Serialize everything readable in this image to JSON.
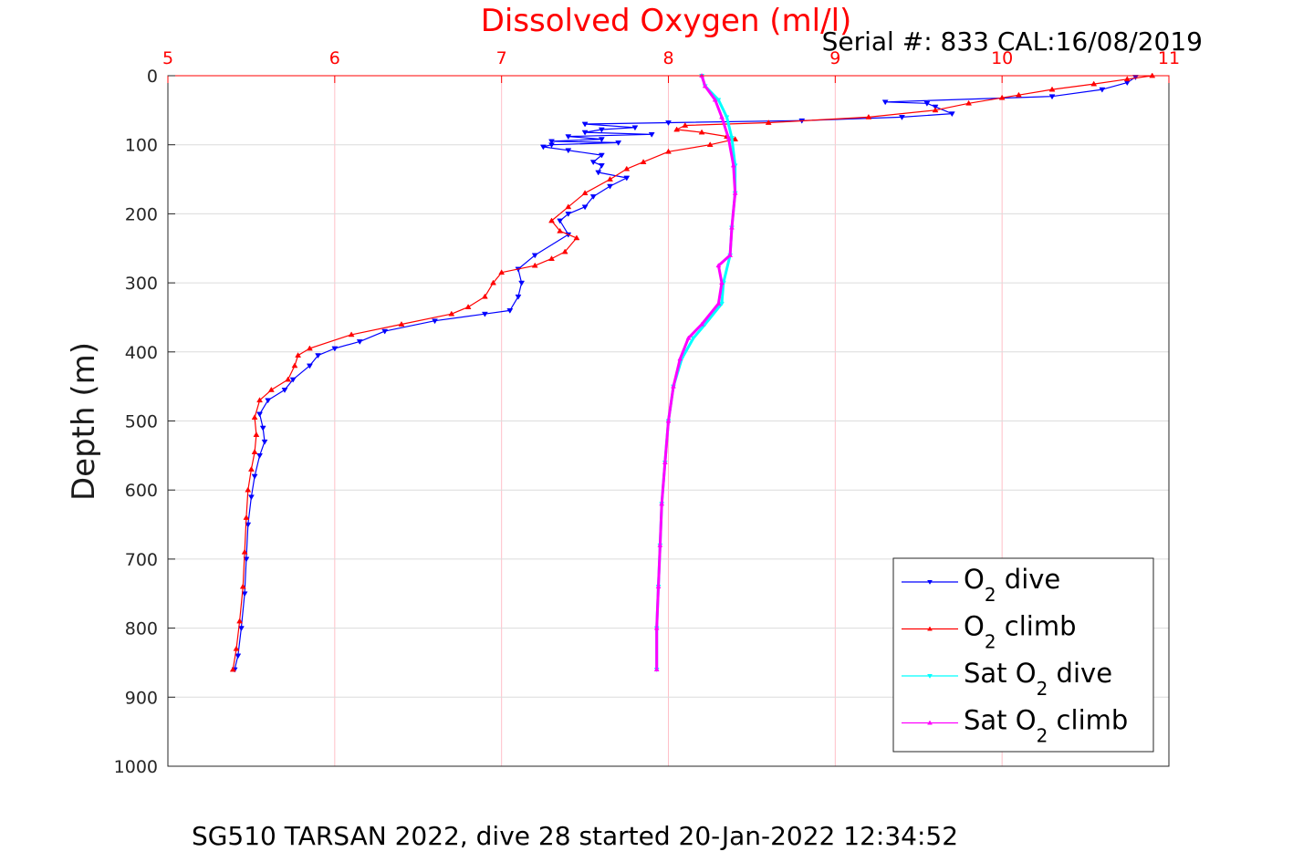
{
  "chart_data": {
    "type": "line",
    "title": "Dissolved Oxygen (ml/l)",
    "serial_text": "Serial #: 833  CAL:16/08/2019",
    "caption": "SG510 TARSAN 2022, dive 28 started 20-Jan-2022 12:34:52",
    "ylabel": "Depth (m)",
    "xlabel": "",
    "xlim": [
      5,
      11
    ],
    "ylim": [
      0,
      1000
    ],
    "y_reversed": true,
    "x_axis_position": "top",
    "grid": true,
    "x_ticks": [
      "5",
      "6",
      "7",
      "8",
      "9",
      "10",
      "11"
    ],
    "y_ticks": [
      "0",
      "100",
      "200",
      "300",
      "400",
      "500",
      "600",
      "700",
      "800",
      "900",
      "1000"
    ],
    "legend_position": "bottom-right",
    "legend": [
      {
        "pre": "O",
        "sub": "2",
        "post": " dive"
      },
      {
        "pre": "O",
        "sub": "2",
        "post": " climb"
      },
      {
        "pre": "Sat O",
        "sub": "2",
        "post": " dive"
      },
      {
        "pre": "Sat O",
        "sub": "2",
        "post": " climb"
      }
    ],
    "series": [
      {
        "color": "#0000ff",
        "marker": "triangle-down",
        "points": [
          [
            10.8,
            2
          ],
          [
            10.75,
            10
          ],
          [
            10.6,
            20
          ],
          [
            10.3,
            30
          ],
          [
            9.3,
            38
          ],
          [
            9.55,
            40
          ],
          [
            9.6,
            45
          ],
          [
            9.7,
            55
          ],
          [
            9.4,
            60
          ],
          [
            8.8,
            65
          ],
          [
            8.0,
            68
          ],
          [
            7.5,
            70
          ],
          [
            7.8,
            75
          ],
          [
            7.6,
            78
          ],
          [
            7.5,
            82
          ],
          [
            7.9,
            85
          ],
          [
            7.4,
            88
          ],
          [
            7.6,
            92
          ],
          [
            7.3,
            95
          ],
          [
            7.7,
            97
          ],
          [
            7.3,
            100
          ],
          [
            7.25,
            103
          ],
          [
            7.4,
            108
          ],
          [
            7.6,
            115
          ],
          [
            7.55,
            125
          ],
          [
            7.6,
            130
          ],
          [
            7.58,
            140
          ],
          [
            7.75,
            148
          ],
          [
            7.65,
            160
          ],
          [
            7.55,
            175
          ],
          [
            7.5,
            190
          ],
          [
            7.4,
            200
          ],
          [
            7.35,
            210
          ],
          [
            7.4,
            230
          ],
          [
            7.2,
            260
          ],
          [
            7.1,
            280
          ],
          [
            7.12,
            300
          ],
          [
            7.1,
            320
          ],
          [
            7.05,
            340
          ],
          [
            6.9,
            345
          ],
          [
            6.6,
            355
          ],
          [
            6.3,
            370
          ],
          [
            6.15,
            385
          ],
          [
            6.0,
            395
          ],
          [
            5.9,
            405
          ],
          [
            5.85,
            420
          ],
          [
            5.75,
            440
          ],
          [
            5.7,
            455
          ],
          [
            5.6,
            470
          ],
          [
            5.55,
            490
          ],
          [
            5.57,
            510
          ],
          [
            5.58,
            530
          ],
          [
            5.55,
            550
          ],
          [
            5.52,
            580
          ],
          [
            5.5,
            610
          ],
          [
            5.48,
            650
          ],
          [
            5.47,
            700
          ],
          [
            5.46,
            750
          ],
          [
            5.44,
            800
          ],
          [
            5.42,
            840
          ],
          [
            5.4,
            860
          ]
        ]
      },
      {
        "color": "#ff0000",
        "marker": "triangle-up",
        "points": [
          [
            10.9,
            0
          ],
          [
            10.75,
            5
          ],
          [
            10.55,
            12
          ],
          [
            10.3,
            20
          ],
          [
            10.1,
            28
          ],
          [
            10.0,
            32
          ],
          [
            9.8,
            40
          ],
          [
            9.6,
            50
          ],
          [
            9.2,
            60
          ],
          [
            8.6,
            68
          ],
          [
            8.1,
            72
          ],
          [
            8.05,
            78
          ],
          [
            8.2,
            82
          ],
          [
            8.35,
            88
          ],
          [
            8.4,
            92
          ],
          [
            8.25,
            100
          ],
          [
            8.0,
            110
          ],
          [
            7.85,
            125
          ],
          [
            7.75,
            135
          ],
          [
            7.65,
            150
          ],
          [
            7.5,
            170
          ],
          [
            7.4,
            190
          ],
          [
            7.3,
            210
          ],
          [
            7.35,
            225
          ],
          [
            7.45,
            235
          ],
          [
            7.38,
            255
          ],
          [
            7.3,
            265
          ],
          [
            7.2,
            275
          ],
          [
            7.0,
            285
          ],
          [
            6.95,
            300
          ],
          [
            6.9,
            320
          ],
          [
            6.8,
            335
          ],
          [
            6.7,
            345
          ],
          [
            6.4,
            360
          ],
          [
            6.1,
            375
          ],
          [
            5.85,
            395
          ],
          [
            5.78,
            405
          ],
          [
            5.76,
            420
          ],
          [
            5.72,
            440
          ],
          [
            5.62,
            455
          ],
          [
            5.55,
            470
          ],
          [
            5.52,
            495
          ],
          [
            5.53,
            520
          ],
          [
            5.52,
            545
          ],
          [
            5.5,
            570
          ],
          [
            5.48,
            600
          ],
          [
            5.47,
            640
          ],
          [
            5.46,
            690
          ],
          [
            5.45,
            740
          ],
          [
            5.43,
            790
          ],
          [
            5.41,
            830
          ],
          [
            5.39,
            860
          ]
        ]
      },
      {
        "color": "#00ffff",
        "marker": "triangle-down",
        "points": [
          [
            8.2,
            0
          ],
          [
            8.22,
            15
          ],
          [
            8.3,
            35
          ],
          [
            8.35,
            60
          ],
          [
            8.38,
            90
          ],
          [
            8.4,
            130
          ],
          [
            8.4,
            170
          ],
          [
            8.38,
            220
          ],
          [
            8.37,
            260
          ],
          [
            8.33,
            300
          ],
          [
            8.32,
            330
          ],
          [
            8.22,
            360
          ],
          [
            8.15,
            380
          ],
          [
            8.08,
            410
          ],
          [
            8.03,
            450
          ],
          [
            8.0,
            500
          ],
          [
            7.98,
            560
          ],
          [
            7.96,
            620
          ],
          [
            7.95,
            680
          ],
          [
            7.94,
            740
          ],
          [
            7.93,
            800
          ],
          [
            7.93,
            860
          ]
        ]
      },
      {
        "color": "#ff00ff",
        "marker": "triangle-up",
        "points": [
          [
            8.2,
            0
          ],
          [
            8.22,
            15
          ],
          [
            8.28,
            35
          ],
          [
            8.32,
            60
          ],
          [
            8.36,
            90
          ],
          [
            8.39,
            130
          ],
          [
            8.4,
            170
          ],
          [
            8.38,
            220
          ],
          [
            8.37,
            260
          ],
          [
            8.3,
            275
          ],
          [
            8.32,
            300
          ],
          [
            8.3,
            330
          ],
          [
            8.2,
            360
          ],
          [
            8.12,
            380
          ],
          [
            8.07,
            410
          ],
          [
            8.03,
            450
          ],
          [
            8.0,
            500
          ],
          [
            7.98,
            560
          ],
          [
            7.96,
            620
          ],
          [
            7.95,
            680
          ],
          [
            7.94,
            740
          ],
          [
            7.93,
            800
          ],
          [
            7.93,
            860
          ]
        ]
      }
    ]
  }
}
